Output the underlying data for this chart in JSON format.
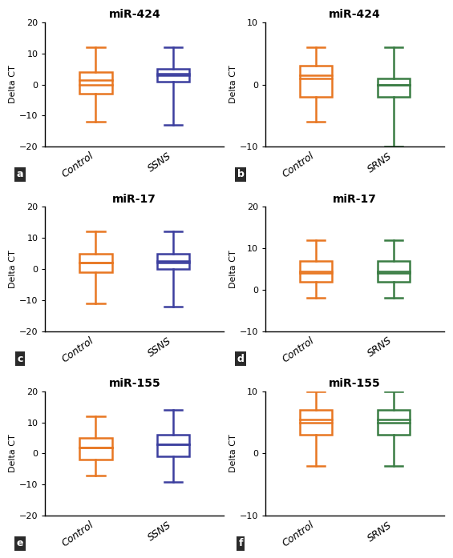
{
  "panels": [
    {
      "label": "a",
      "title": "miR-424",
      "ylabel": "Delta CT",
      "ylim": [
        -20,
        20
      ],
      "yticks": [
        -20,
        -10,
        0,
        10,
        20
      ],
      "groups": [
        {
          "name": "Control",
          "color": "#E87722",
          "whisker_low": -12,
          "q1": -3,
          "median": 0,
          "q3": 4,
          "whisker_high": 12,
          "mean": 1.5
        },
        {
          "name": "SSNS",
          "color": "#3C3F9F",
          "whisker_low": -13,
          "q1": 1,
          "median": 3,
          "q3": 5,
          "whisker_high": 12,
          "mean": 3.5
        }
      ]
    },
    {
      "label": "b",
      "title": "miR-424",
      "ylabel": "Delta CT",
      "ylim": [
        -10,
        10
      ],
      "yticks": [
        -10,
        0,
        10
      ],
      "groups": [
        {
          "name": "Control",
          "color": "#E87722",
          "whisker_low": -6,
          "q1": -2,
          "median": 1,
          "q3": 3,
          "whisker_high": 6,
          "mean": 1.5
        },
        {
          "name": "SRNS",
          "color": "#3A7D44",
          "whisker_low": -10,
          "q1": -2,
          "median": 0,
          "q3": 1,
          "whisker_high": 6,
          "mean": 0
        }
      ]
    },
    {
      "label": "c",
      "title": "miR-17",
      "ylabel": "Delta CT",
      "ylim": [
        -20,
        20
      ],
      "yticks": [
        -20,
        -10,
        0,
        10,
        20
      ],
      "groups": [
        {
          "name": "Control",
          "color": "#E87722",
          "whisker_low": -11,
          "q1": -1,
          "median": 2,
          "q3": 5,
          "whisker_high": 12,
          "mean": 2
        },
        {
          "name": "SSNS",
          "color": "#3C3F9F",
          "whisker_low": -12,
          "q1": 0,
          "median": 2,
          "q3": 5,
          "whisker_high": 12,
          "mean": 2.5
        }
      ]
    },
    {
      "label": "d",
      "title": "miR-17",
      "ylabel": "Delta CT",
      "ylim": [
        -10,
        20
      ],
      "yticks": [
        -10,
        0,
        10,
        20
      ],
      "groups": [
        {
          "name": "Control",
          "color": "#E87722",
          "whisker_low": -2,
          "q1": 2,
          "median": 4,
          "q3": 7,
          "whisker_high": 12,
          "mean": 4.5
        },
        {
          "name": "SRNS",
          "color": "#3A7D44",
          "whisker_low": -2,
          "q1": 2,
          "median": 4,
          "q3": 7,
          "whisker_high": 12,
          "mean": 4.5
        }
      ]
    },
    {
      "label": "e",
      "title": "miR-155",
      "ylabel": "Delta CT",
      "ylim": [
        -20,
        20
      ],
      "yticks": [
        -20,
        -10,
        0,
        10,
        20
      ],
      "groups": [
        {
          "name": "Control",
          "color": "#E87722",
          "whisker_low": -7,
          "q1": -2,
          "median": 2,
          "q3": 5,
          "whisker_high": 12,
          "mean": 2
        },
        {
          "name": "SSNS",
          "color": "#3C3F9F",
          "whisker_low": -9,
          "q1": -1,
          "median": 3,
          "q3": 6,
          "whisker_high": 14,
          "mean": 3
        }
      ]
    },
    {
      "label": "f",
      "title": "miR-155",
      "ylabel": "Delta CT",
      "ylim": [
        -10,
        10
      ],
      "yticks": [
        -10,
        0,
        10
      ],
      "groups": [
        {
          "name": "Control",
          "color": "#E87722",
          "whisker_low": -2,
          "q1": 3,
          "median": 5,
          "q3": 7,
          "whisker_high": 10,
          "mean": 5.5
        },
        {
          "name": "SRNS",
          "color": "#3A7D44",
          "whisker_low": -2,
          "q1": 3,
          "median": 5,
          "q3": 7,
          "whisker_high": 10,
          "mean": 5.5
        }
      ]
    }
  ],
  "background_color": "#ffffff",
  "label_bg": "#2a2a2a",
  "label_fg": "#ffffff",
  "title_fontsize": 10,
  "axis_label_fontsize": 8,
  "tick_fontsize": 8,
  "xtick_fontsize": 9,
  "box_width": 0.42,
  "linewidth": 1.8,
  "cap_ratio": 0.55
}
